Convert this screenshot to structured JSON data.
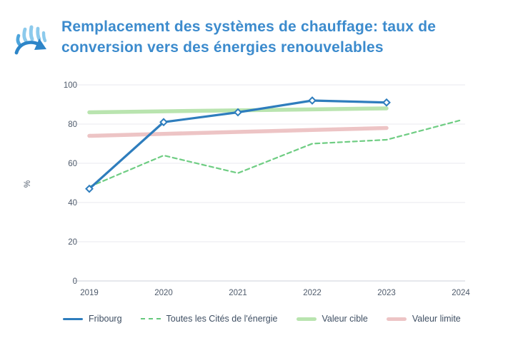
{
  "header": {
    "title_line1": "Remplacement des systèmes de chauffage: taux de",
    "title_line2": "conversion vers des énergies renouvelables",
    "icon": "heat-conversion-icon"
  },
  "colors": {
    "title": "#3c8bcd",
    "fribourg_blue": "#2e7dbd",
    "cities_green": "#6fcd83",
    "target_green": "#b9e4af",
    "limit_pink": "#edc4c5",
    "gridline": "#edeef2",
    "axis_line": "#dde1e7",
    "tick_text": "#4e5a6b",
    "icon_flame_light": "#8ccaec",
    "icon_flame_dark": "#4da5dc",
    "icon_arrow": "#2d85c8"
  },
  "chart_data": {
    "type": "line",
    "title": "Remplacement des systèmes de chauffage: taux de conversion vers des énergies renouvelables",
    "xlabel": "",
    "ylabel": "%",
    "ylim": [
      0,
      100
    ],
    "yticks": [
      0,
      20,
      40,
      60,
      80,
      100
    ],
    "x": [
      2019,
      2020,
      2021,
      2022,
      2023,
      2024
    ],
    "grid": "horizontal",
    "legend_position": "bottom",
    "series": [
      {
        "name": "Fribourg",
        "style": "solid",
        "marker": "diamond",
        "color": "#2e7dbd",
        "values": [
          47,
          81,
          86,
          92,
          91,
          null
        ]
      },
      {
        "name": "Toutes les Cités de l'énergie",
        "style": "dashed",
        "marker": "none",
        "color": "#6fcd83",
        "values": [
          48,
          64,
          55,
          70,
          72,
          82
        ]
      },
      {
        "name": "Valeur cible",
        "style": "band",
        "marker": "none",
        "color": "#b9e4af",
        "values": [
          86,
          86.5,
          87,
          87.5,
          88,
          null
        ]
      },
      {
        "name": "Valeur limite",
        "style": "band",
        "marker": "none",
        "color": "#edc4c5",
        "values": [
          74,
          75,
          76,
          77,
          78,
          null
        ]
      }
    ]
  },
  "legend": {
    "items": [
      {
        "label": "Fribourg",
        "swatch": "sw-solid",
        "name": "legend-item-fribourg"
      },
      {
        "label": "Toutes les Cités de l'énergie",
        "swatch": "sw-dashed",
        "name": "legend-item-cites-energie"
      },
      {
        "label": "Valeur cible",
        "swatch": "sw-band-green",
        "name": "legend-item-valeur-cible"
      },
      {
        "label": "Valeur limite",
        "swatch": "sw-band-pink",
        "name": "legend-item-valeur-limite"
      }
    ]
  }
}
